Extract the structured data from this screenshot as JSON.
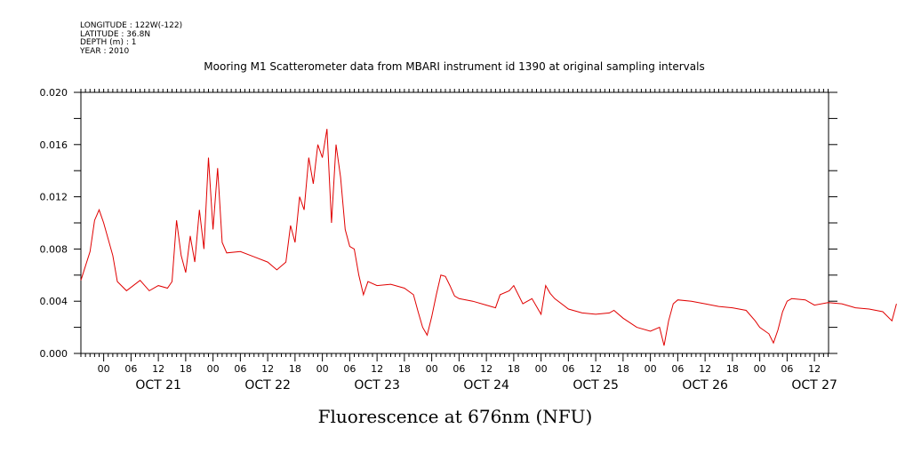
{
  "meta": {
    "longitude": "LONGITUDE : 122W(-122)",
    "latitude": "LATITUDE : 36.8N",
    "depth": "DEPTH (m) : 1",
    "year": "YEAR : 2010"
  },
  "colors": {
    "series": "#e00000",
    "axes": "#000000"
  },
  "chart_data": {
    "type": "line",
    "title": "Mooring M1 Scatterometer data from MBARI instrument id 1390 at original sampling intervals",
    "xlabel": "Fluorescence at 676nm (NFU)",
    "ylabel": "",
    "x_unit": "hours",
    "xlim": [
      "Oct 20 2010 19:00",
      "Oct 27 2010 17:00"
    ],
    "ylim": [
      0.0,
      0.02
    ],
    "y_ticks": [
      "0.000",
      "0.004",
      "0.008",
      "0.012",
      "0.016",
      "0.020"
    ],
    "hour_labels": [
      "00",
      "06",
      "12",
      "18",
      "00",
      "06",
      "12",
      "18",
      "00",
      "06",
      "12",
      "18",
      "00",
      "06",
      "12",
      "18",
      "00",
      "06",
      "12",
      "18",
      "00",
      "06",
      "12",
      "18",
      "00",
      "06",
      "12"
    ],
    "day_labels": [
      "OCT 21",
      "OCT 22",
      "OCT 23",
      "OCT 24",
      "OCT 25",
      "OCT 26",
      "OCT 27"
    ],
    "grid": false,
    "legend": "none",
    "series": [
      {
        "points": [
          [
            "Oct 20 19:00",
            0.0056
          ],
          [
            "Oct 20 21:00",
            0.0078
          ],
          [
            "Oct 20 22:00",
            0.0102
          ],
          [
            "Oct 20 23:00",
            0.011
          ],
          [
            "Oct 21 00:00",
            0.01
          ],
          [
            "Oct 21 02:00",
            0.0075
          ],
          [
            "Oct 21 03:00",
            0.0055
          ],
          [
            "Oct 21 05:00",
            0.0048
          ],
          [
            "Oct 21 08:00",
            0.0056
          ],
          [
            "Oct 21 10:00",
            0.0048
          ],
          [
            "Oct 21 12:00",
            0.0052
          ],
          [
            "Oct 21 14:00",
            0.005
          ],
          [
            "Oct 21 15:00",
            0.0055
          ],
          [
            "Oct 21 16:00",
            0.0102
          ],
          [
            "Oct 21 17:00",
            0.0075
          ],
          [
            "Oct 21 18:00",
            0.0062
          ],
          [
            "Oct 21 19:00",
            0.009
          ],
          [
            "Oct 21 20:00",
            0.007
          ],
          [
            "Oct 21 21:00",
            0.011
          ],
          [
            "Oct 21 22:00",
            0.008
          ],
          [
            "Oct 21 23:00",
            0.015
          ],
          [
            "Oct 22 00:00",
            0.0095
          ],
          [
            "Oct 22 01:00",
            0.0142
          ],
          [
            "Oct 22 02:00",
            0.0085
          ],
          [
            "Oct 22 03:00",
            0.0077
          ],
          [
            "Oct 22 06:00",
            0.0078
          ],
          [
            "Oct 22 09:00",
            0.0074
          ],
          [
            "Oct 22 12:00",
            0.007
          ],
          [
            "Oct 22 14:00",
            0.0064
          ],
          [
            "Oct 22 16:00",
            0.007
          ],
          [
            "Oct 22 17:00",
            0.0098
          ],
          [
            "Oct 22 18:00",
            0.0085
          ],
          [
            "Oct 22 19:00",
            0.012
          ],
          [
            "Oct 22 20:00",
            0.011
          ],
          [
            "Oct 22 21:00",
            0.015
          ],
          [
            "Oct 22 22:00",
            0.013
          ],
          [
            "Oct 22 23:00",
            0.016
          ],
          [
            "Oct 23 00:00",
            0.015
          ],
          [
            "Oct 23 01:00",
            0.0172
          ],
          [
            "Oct 23 02:00",
            0.01
          ],
          [
            "Oct 23 03:00",
            0.016
          ],
          [
            "Oct 23 04:00",
            0.0135
          ],
          [
            "Oct 23 05:00",
            0.0095
          ],
          [
            "Oct 23 06:00",
            0.0082
          ],
          [
            "Oct 23 07:00",
            0.008
          ],
          [
            "Oct 23 08:00",
            0.006
          ],
          [
            "Oct 23 09:00",
            0.0045
          ],
          [
            "Oct 23 10:00",
            0.0055
          ],
          [
            "Oct 23 12:00",
            0.0052
          ],
          [
            "Oct 23 15:00",
            0.0053
          ],
          [
            "Oct 23 18:00",
            0.005
          ],
          [
            "Oct 23 20:00",
            0.0045
          ],
          [
            "Oct 23 21:00",
            0.0032
          ],
          [
            "Oct 23 22:00",
            0.002
          ],
          [
            "Oct 23 23:00",
            0.0014
          ],
          [
            "Oct 24 00:00",
            0.0028
          ],
          [
            "Oct 24 01:00",
            0.0045
          ],
          [
            "Oct 24 02:00",
            0.006
          ],
          [
            "Oct 24 03:00",
            0.0059
          ],
          [
            "Oct 24 04:00",
            0.0052
          ],
          [
            "Oct 24 05:00",
            0.0044
          ],
          [
            "Oct 24 06:00",
            0.0042
          ],
          [
            "Oct 24 09:00",
            0.004
          ],
          [
            "Oct 24 12:00",
            0.0037
          ],
          [
            "Oct 24 14:00",
            0.0035
          ],
          [
            "Oct 24 15:00",
            0.0045
          ],
          [
            "Oct 24 17:00",
            0.0048
          ],
          [
            "Oct 24 18:00",
            0.0052
          ],
          [
            "Oct 24 20:00",
            0.0038
          ],
          [
            "Oct 24 22:00",
            0.0042
          ],
          [
            "Oct 25 00:00",
            0.003
          ],
          [
            "Oct 25 01:00",
            0.0052
          ],
          [
            "Oct 25 02:00",
            0.0046
          ],
          [
            "Oct 25 03:00",
            0.0042
          ],
          [
            "Oct 25 06:00",
            0.0034
          ],
          [
            "Oct 25 09:00",
            0.0031
          ],
          [
            "Oct 25 12:00",
            0.003
          ],
          [
            "Oct 25 15:00",
            0.0031
          ],
          [
            "Oct 25 16:00",
            0.0033
          ],
          [
            "Oct 25 18:00",
            0.0027
          ],
          [
            "Oct 25 21:00",
            0.002
          ],
          [
            "Oct 26 00:00",
            0.0017
          ],
          [
            "Oct 26 02:00",
            0.002
          ],
          [
            "Oct 26 03:00",
            0.0006
          ],
          [
            "Oct 26 04:00",
            0.0025
          ],
          [
            "Oct 26 05:00",
            0.0038
          ],
          [
            "Oct 26 06:00",
            0.0041
          ],
          [
            "Oct 26 09:00",
            0.004
          ],
          [
            "Oct 26 12:00",
            0.0038
          ],
          [
            "Oct 26 15:00",
            0.0036
          ],
          [
            "Oct 26 18:00",
            0.0035
          ],
          [
            "Oct 26 21:00",
            0.0033
          ],
          [
            "Oct 26 23:00",
            0.0025
          ],
          [
            "Oct 27 00:00",
            0.002
          ],
          [
            "Oct 27 02:00",
            0.0015
          ],
          [
            "Oct 27 03:00",
            0.0008
          ],
          [
            "Oct 27 04:00",
            0.0018
          ],
          [
            "Oct 27 05:00",
            0.0032
          ],
          [
            "Oct 27 06:00",
            0.004
          ],
          [
            "Oct 27 07:00",
            0.0042
          ],
          [
            "Oct 27 10:00",
            0.0041
          ],
          [
            "Oct 27 12:00",
            0.0037
          ],
          [
            "Oct 27 15:00",
            0.0039
          ],
          [
            "Oct 27 18:00",
            0.0038
          ],
          [
            "Oct 27 21:00",
            0.0035
          ],
          [
            "Oct 28 00:00",
            0.0034
          ],
          [
            "Oct 28 03:00",
            0.0032
          ],
          [
            "Oct 28 05:00",
            0.0025
          ],
          [
            "Oct 28 06:00",
            0.0038
          ]
        ]
      }
    ]
  }
}
